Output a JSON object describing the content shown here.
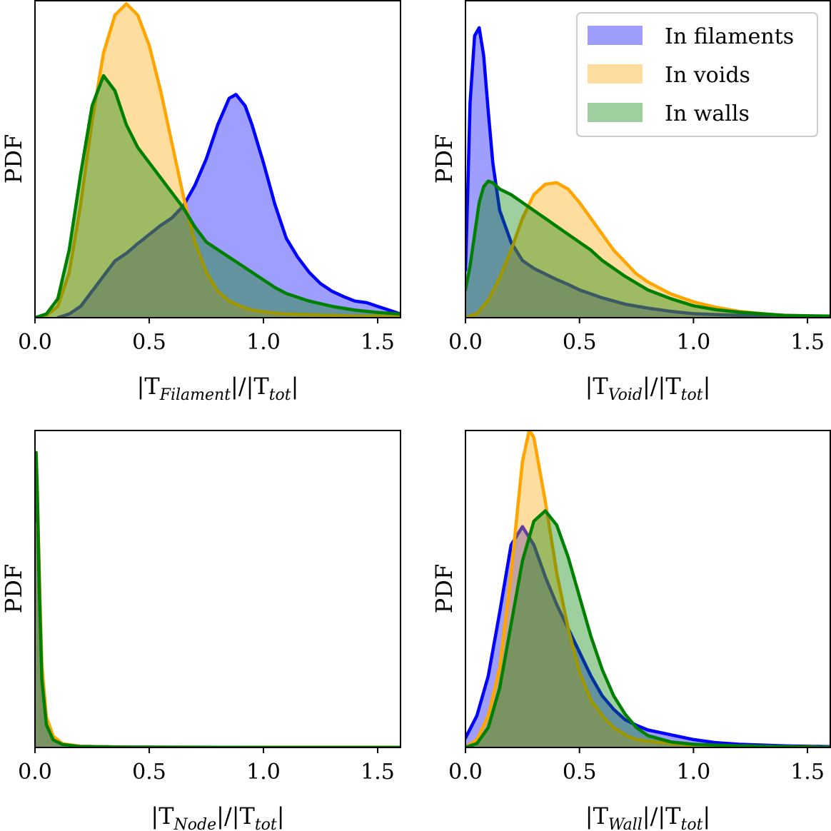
{
  "chart_data": [
    {
      "type": "area",
      "title": "",
      "ylabel": "PDF",
      "xlabel": {
        "base": "|T",
        "sub": "Filament",
        "tail": "|/|T",
        "sub2": "tot",
        "end": "|"
      },
      "xlim": [
        0,
        1.6
      ],
      "ylim": [
        0,
        4.2
      ],
      "xticks": [
        "0.0",
        "0.5",
        "1.0",
        "1.5"
      ],
      "grid": false,
      "legend": null,
      "series": [
        {
          "name": "In filaments",
          "color": "#0000ff",
          "fill": "rgba(0,0,255,0.38)",
          "x": [
            0.1,
            0.15,
            0.2,
            0.25,
            0.3,
            0.35,
            0.4,
            0.45,
            0.5,
            0.55,
            0.6,
            0.65,
            0.7,
            0.75,
            0.8,
            0.85,
            0.88,
            0.92,
            0.95,
            1.0,
            1.05,
            1.1,
            1.15,
            1.2,
            1.25,
            1.3,
            1.35,
            1.4,
            1.45,
            1.5,
            1.55,
            1.6
          ],
          "y": [
            0.0,
            0.05,
            0.15,
            0.35,
            0.55,
            0.75,
            0.85,
            0.98,
            1.1,
            1.22,
            1.32,
            1.48,
            1.75,
            2.1,
            2.55,
            2.9,
            2.95,
            2.8,
            2.55,
            2.05,
            1.5,
            1.05,
            0.8,
            0.6,
            0.45,
            0.35,
            0.28,
            0.22,
            0.2,
            0.15,
            0.1,
            0.05
          ]
        },
        {
          "name": "In voids",
          "color": "#ffa500",
          "fill": "rgba(255,165,0,0.38)",
          "x": [
            0.0,
            0.05,
            0.1,
            0.15,
            0.2,
            0.25,
            0.3,
            0.35,
            0.4,
            0.45,
            0.5,
            0.55,
            0.6,
            0.65,
            0.7,
            0.75,
            0.8,
            0.85,
            0.9,
            0.95,
            1.0,
            1.05,
            1.1,
            1.2,
            1.3,
            1.4,
            1.5,
            1.6
          ],
          "y": [
            0.0,
            0.03,
            0.15,
            0.6,
            1.5,
            2.6,
            3.5,
            4.0,
            4.15,
            4.0,
            3.6,
            3.0,
            2.3,
            1.6,
            1.0,
            0.6,
            0.35,
            0.22,
            0.15,
            0.1,
            0.08,
            0.06,
            0.05,
            0.04,
            0.03,
            0.02,
            0.02,
            0.01
          ]
        },
        {
          "name": "In walls",
          "color": "#008000",
          "fill": "rgba(0,128,0,0.38)",
          "x": [
            0.0,
            0.05,
            0.1,
            0.15,
            0.2,
            0.25,
            0.3,
            0.35,
            0.4,
            0.45,
            0.5,
            0.55,
            0.6,
            0.65,
            0.7,
            0.75,
            0.8,
            0.85,
            0.9,
            0.95,
            1.0,
            1.05,
            1.1,
            1.2,
            1.3,
            1.4,
            1.5,
            1.6
          ],
          "y": [
            0.0,
            0.05,
            0.25,
            0.9,
            1.9,
            2.8,
            3.2,
            3.0,
            2.55,
            2.25,
            2.05,
            1.85,
            1.65,
            1.45,
            1.2,
            1.0,
            0.9,
            0.8,
            0.7,
            0.6,
            0.5,
            0.4,
            0.32,
            0.22,
            0.15,
            0.1,
            0.07,
            0.05
          ]
        }
      ]
    },
    {
      "type": "area",
      "title": "",
      "ylabel": "PDF",
      "xlabel": {
        "base": "|T",
        "sub": "Void",
        "tail": "|/|T",
        "sub2": "tot",
        "end": "|"
      },
      "xlim": [
        0,
        1.6
      ],
      "ylim": [
        0,
        4.0
      ],
      "xticks": [
        "0.0",
        "0.5",
        "1.0",
        "1.5"
      ],
      "grid": false,
      "legend": {
        "placement": "top-right",
        "entries": [
          "In filaments",
          "In voids",
          "In walls"
        ]
      },
      "series": [
        {
          "name": "In filaments",
          "color": "#0000ff",
          "fill": "rgba(0,0,255,0.38)",
          "x": [
            0.0,
            0.01,
            0.02,
            0.04,
            0.06,
            0.08,
            0.1,
            0.12,
            0.15,
            0.2,
            0.25,
            0.3,
            0.35,
            0.4,
            0.45,
            0.5,
            0.55,
            0.6,
            0.7,
            0.8,
            0.9,
            1.0,
            1.1,
            1.2,
            1.4,
            1.6
          ],
          "y": [
            0.6,
            1.6,
            2.7,
            3.55,
            3.65,
            3.3,
            2.6,
            1.95,
            1.35,
            0.95,
            0.72,
            0.62,
            0.55,
            0.48,
            0.42,
            0.35,
            0.3,
            0.25,
            0.17,
            0.12,
            0.08,
            0.05,
            0.04,
            0.03,
            0.02,
            0.01
          ]
        },
        {
          "name": "In voids",
          "color": "#ffa500",
          "fill": "rgba(255,165,0,0.38)",
          "x": [
            0.0,
            0.05,
            0.1,
            0.15,
            0.2,
            0.25,
            0.3,
            0.35,
            0.4,
            0.45,
            0.5,
            0.55,
            0.6,
            0.65,
            0.7,
            0.75,
            0.8,
            0.9,
            1.0,
            1.1,
            1.2,
            1.3,
            1.4,
            1.5,
            1.6
          ],
          "y": [
            0.0,
            0.05,
            0.22,
            0.5,
            0.85,
            1.25,
            1.55,
            1.68,
            1.7,
            1.62,
            1.45,
            1.25,
            1.05,
            0.85,
            0.7,
            0.55,
            0.45,
            0.3,
            0.2,
            0.13,
            0.08,
            0.05,
            0.03,
            0.02,
            0.01
          ]
        },
        {
          "name": "In walls",
          "color": "#008000",
          "fill": "rgba(0,128,0,0.38)",
          "x": [
            0.0,
            0.02,
            0.04,
            0.06,
            0.08,
            0.1,
            0.12,
            0.15,
            0.2,
            0.25,
            0.3,
            0.35,
            0.4,
            0.45,
            0.5,
            0.55,
            0.6,
            0.7,
            0.8,
            0.9,
            1.0,
            1.1,
            1.2,
            1.4,
            1.6
          ],
          "y": [
            0.35,
            0.65,
            1.05,
            1.45,
            1.65,
            1.72,
            1.7,
            1.62,
            1.55,
            1.45,
            1.35,
            1.25,
            1.15,
            1.05,
            0.95,
            0.85,
            0.72,
            0.52,
            0.35,
            0.24,
            0.15,
            0.1,
            0.07,
            0.03,
            0.02
          ]
        }
      ]
    },
    {
      "type": "area",
      "title": "",
      "ylabel": "PDF",
      "xlabel": {
        "base": "|T",
        "sub": "Node",
        "tail": "|/|T",
        "sub2": "tot",
        "end": "|"
      },
      "xlim": [
        0,
        1.6
      ],
      "ylim": [
        0,
        42
      ],
      "xticks": [
        "0.0",
        "0.5",
        "1.0",
        "1.5"
      ],
      "grid": false,
      "legend": null,
      "series": [
        {
          "name": "In filaments",
          "color": "#0000ff",
          "fill": "rgba(0,0,255,0.38)",
          "x": [
            0.0,
            0.005,
            0.01,
            0.02,
            0.03,
            0.05,
            0.08,
            0.12,
            0.2,
            0.4,
            0.8,
            1.6
          ],
          "y": [
            30,
            36,
            33,
            20,
            10,
            3.5,
            1.2,
            0.4,
            0.15,
            0.05,
            0.02,
            0.01
          ]
        },
        {
          "name": "In voids",
          "color": "#ffa500",
          "fill": "rgba(255,165,0,0.38)",
          "x": [
            0.0,
            0.005,
            0.01,
            0.02,
            0.03,
            0.05,
            0.08,
            0.12,
            0.2,
            0.4,
            0.8,
            1.6
          ],
          "y": [
            36,
            38,
            34,
            22,
            11,
            4,
            1.5,
            0.5,
            0.15,
            0.05,
            0.02,
            0.01
          ]
        },
        {
          "name": "In walls",
          "color": "#008000",
          "fill": "rgba(0,128,0,0.38)",
          "x": [
            0.0,
            0.005,
            0.01,
            0.02,
            0.03,
            0.05,
            0.08,
            0.12,
            0.2,
            0.4,
            0.8,
            1.6
          ],
          "y": [
            38,
            39,
            34,
            20,
            9,
            3,
            1.0,
            0.4,
            0.12,
            0.04,
            0.02,
            0.01
          ]
        }
      ]
    },
    {
      "type": "area",
      "title": "",
      "ylabel": "PDF",
      "xlabel": {
        "base": "|T",
        "sub": "Wall",
        "tail": "|/|T",
        "sub2": "tot",
        "end": "|"
      },
      "xlim": [
        0,
        1.6
      ],
      "ylim": [
        0,
        4.0
      ],
      "xticks": [
        "0.0",
        "0.5",
        "1.0",
        "1.5"
      ],
      "grid": false,
      "legend": null,
      "series": [
        {
          "name": "In filaments",
          "color": "#0000ff",
          "fill": "rgba(0,0,255,0.38)",
          "x": [
            0.0,
            0.05,
            0.1,
            0.15,
            0.2,
            0.25,
            0.3,
            0.35,
            0.4,
            0.45,
            0.5,
            0.55,
            0.6,
            0.65,
            0.7,
            0.75,
            0.8,
            0.9,
            1.0,
            1.1,
            1.2,
            1.4,
            1.6
          ],
          "y": [
            0.12,
            0.4,
            0.9,
            1.7,
            2.55,
            2.78,
            2.55,
            2.15,
            1.8,
            1.5,
            1.2,
            0.9,
            0.65,
            0.48,
            0.35,
            0.28,
            0.22,
            0.16,
            0.1,
            0.06,
            0.04,
            0.02,
            0.01
          ]
        },
        {
          "name": "In voids",
          "color": "#ffa500",
          "fill": "rgba(255,165,0,0.38)",
          "x": [
            0.0,
            0.05,
            0.1,
            0.15,
            0.2,
            0.25,
            0.28,
            0.3,
            0.35,
            0.4,
            0.45,
            0.5,
            0.55,
            0.6,
            0.65,
            0.7,
            0.75,
            0.8,
            0.9,
            1.0,
            1.2,
            1.4,
            1.6
          ],
          "y": [
            0.0,
            0.1,
            0.4,
            1.0,
            2.2,
            3.6,
            4.0,
            3.9,
            3.1,
            2.2,
            1.5,
            0.95,
            0.6,
            0.4,
            0.25,
            0.16,
            0.1,
            0.08,
            0.05,
            0.03,
            0.02,
            0.01,
            0.0
          ]
        },
        {
          "name": "In walls",
          "color": "#008000",
          "fill": "rgba(0,128,0,0.38)",
          "x": [
            0.0,
            0.05,
            0.1,
            0.15,
            0.2,
            0.25,
            0.3,
            0.35,
            0.4,
            0.45,
            0.5,
            0.55,
            0.6,
            0.65,
            0.7,
            0.75,
            0.8,
            0.9,
            1.0,
            1.2,
            1.4,
            1.6
          ],
          "y": [
            0.0,
            0.05,
            0.25,
            0.75,
            1.55,
            2.35,
            2.85,
            2.98,
            2.8,
            2.4,
            1.9,
            1.4,
            0.98,
            0.65,
            0.42,
            0.25,
            0.15,
            0.07,
            0.04,
            0.02,
            0.01,
            0.0
          ]
        }
      ]
    }
  ]
}
